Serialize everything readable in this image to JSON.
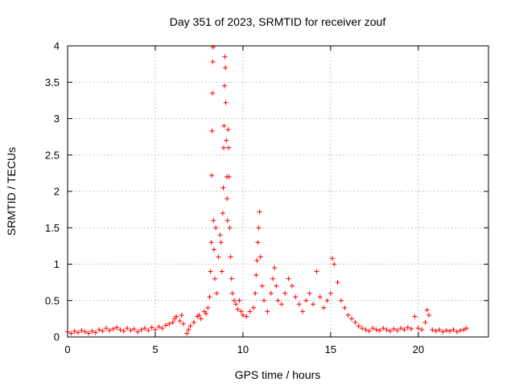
{
  "chart_data": {
    "type": "scatter",
    "title": "Day 351 of 2023, SRMTID for receiver zouf",
    "xlabel": "GPS time / hours",
    "ylabel": "SRMTID / TECUs",
    "xlim": [
      0,
      24
    ],
    "ylim": [
      0,
      4
    ],
    "x_ticks": [
      0,
      5,
      10,
      15,
      20
    ],
    "y_ticks": [
      0,
      0.5,
      1,
      1.5,
      2,
      2.5,
      3,
      3.5,
      4
    ],
    "x_tick_labels": [
      "0",
      "5",
      "10",
      "15",
      "20"
    ],
    "y_tick_labels": [
      "0",
      "0.5",
      "1",
      "1.5",
      "2",
      "2.5",
      "3",
      "3.5",
      "4"
    ],
    "grid": true,
    "marker": "+",
    "color": "#ff0000",
    "series": [
      {
        "name": "SRMTID",
        "points": [
          [
            0.0,
            0.07
          ],
          [
            0.2,
            0.05
          ],
          [
            0.4,
            0.08
          ],
          [
            0.6,
            0.06
          ],
          [
            0.8,
            0.09
          ],
          [
            1.0,
            0.07
          ],
          [
            1.2,
            0.05
          ],
          [
            1.4,
            0.08
          ],
          [
            1.6,
            0.06
          ],
          [
            1.8,
            0.1
          ],
          [
            2.0,
            0.08
          ],
          [
            2.2,
            0.12
          ],
          [
            2.4,
            0.09
          ],
          [
            2.6,
            0.11
          ],
          [
            2.8,
            0.13
          ],
          [
            3.0,
            0.1
          ],
          [
            3.2,
            0.08
          ],
          [
            3.4,
            0.12
          ],
          [
            3.6,
            0.09
          ],
          [
            3.8,
            0.11
          ],
          [
            4.0,
            0.07
          ],
          [
            4.2,
            0.1
          ],
          [
            4.4,
            0.12
          ],
          [
            4.6,
            0.09
          ],
          [
            4.8,
            0.13
          ],
          [
            5.0,
            0.1
          ],
          [
            5.2,
            0.14
          ],
          [
            5.4,
            0.12
          ],
          [
            5.6,
            0.16
          ],
          [
            5.8,
            0.18
          ],
          [
            6.0,
            0.2
          ],
          [
            6.1,
            0.25
          ],
          [
            6.2,
            0.28
          ],
          [
            6.4,
            0.22
          ],
          [
            6.5,
            0.3
          ],
          [
            6.6,
            0.18
          ],
          [
            6.8,
            0.05
          ],
          [
            6.9,
            0.1
          ],
          [
            7.0,
            0.15
          ],
          [
            7.2,
            0.2
          ],
          [
            7.4,
            0.28
          ],
          [
            7.5,
            0.3
          ],
          [
            7.6,
            0.25
          ],
          [
            7.8,
            0.35
          ],
          [
            7.9,
            0.32
          ],
          [
            8.0,
            0.4
          ],
          [
            8.1,
            0.55
          ],
          [
            8.15,
            0.9
          ],
          [
            8.2,
            1.3
          ],
          [
            8.22,
            2.22
          ],
          [
            8.24,
            2.83
          ],
          [
            8.26,
            3.35
          ],
          [
            8.28,
            3.78
          ],
          [
            8.3,
            3.98
          ],
          [
            8.32,
            1.6
          ],
          [
            8.35,
            1.2
          ],
          [
            8.4,
            0.8
          ],
          [
            8.45,
            1.5
          ],
          [
            8.5,
            0.6
          ],
          [
            8.6,
            1.1
          ],
          [
            8.7,
            1.4
          ],
          [
            8.75,
            1.3
          ],
          [
            8.8,
            0.9
          ],
          [
            8.85,
            1.7
          ],
          [
            8.88,
            2.05
          ],
          [
            8.9,
            2.6
          ],
          [
            8.92,
            2.9
          ],
          [
            8.95,
            3.45
          ],
          [
            8.97,
            3.85
          ],
          [
            9.0,
            3.7
          ],
          [
            9.02,
            3.22
          ],
          [
            9.05,
            2.7
          ],
          [
            9.08,
            2.2
          ],
          [
            9.1,
            1.9
          ],
          [
            9.12,
            1.6
          ],
          [
            9.15,
            2.85
          ],
          [
            9.18,
            2.6
          ],
          [
            9.2,
            2.2
          ],
          [
            9.25,
            1.5
          ],
          [
            9.3,
            1.1
          ],
          [
            9.35,
            0.8
          ],
          [
            9.4,
            0.6
          ],
          [
            9.5,
            0.5
          ],
          [
            9.6,
            0.45
          ],
          [
            9.7,
            0.38
          ],
          [
            9.8,
            0.5
          ],
          [
            9.9,
            0.35
          ],
          [
            10.0,
            0.3
          ],
          [
            10.2,
            0.28
          ],
          [
            10.4,
            0.35
          ],
          [
            10.6,
            0.4
          ],
          [
            10.7,
            0.6
          ],
          [
            10.75,
            0.85
          ],
          [
            10.8,
            1.05
          ],
          [
            10.85,
            1.3
          ],
          [
            10.9,
            1.5
          ],
          [
            10.95,
            1.72
          ],
          [
            11.0,
            1.1
          ],
          [
            11.1,
            0.7
          ],
          [
            11.2,
            0.5
          ],
          [
            11.4,
            0.35
          ],
          [
            11.6,
            0.6
          ],
          [
            11.7,
            0.8
          ],
          [
            11.8,
            0.95
          ],
          [
            11.9,
            0.7
          ],
          [
            12.0,
            0.5
          ],
          [
            12.2,
            0.45
          ],
          [
            12.4,
            0.6
          ],
          [
            12.6,
            0.8
          ],
          [
            12.8,
            0.7
          ],
          [
            13.0,
            0.55
          ],
          [
            13.2,
            0.45
          ],
          [
            13.4,
            0.35
          ],
          [
            13.6,
            0.5
          ],
          [
            13.8,
            0.6
          ],
          [
            14.0,
            0.45
          ],
          [
            14.2,
            0.9
          ],
          [
            14.4,
            0.55
          ],
          [
            14.6,
            0.4
          ],
          [
            14.8,
            0.5
          ],
          [
            15.0,
            0.6
          ],
          [
            15.1,
            1.08
          ],
          [
            15.2,
            1.0
          ],
          [
            15.4,
            0.75
          ],
          [
            15.6,
            0.5
          ],
          [
            15.8,
            0.4
          ],
          [
            16.0,
            0.3
          ],
          [
            16.2,
            0.25
          ],
          [
            16.4,
            0.2
          ],
          [
            16.6,
            0.15
          ],
          [
            16.8,
            0.12
          ],
          [
            17.0,
            0.1
          ],
          [
            17.2,
            0.08
          ],
          [
            17.4,
            0.12
          ],
          [
            17.6,
            0.1
          ],
          [
            17.8,
            0.09
          ],
          [
            18.0,
            0.12
          ],
          [
            18.2,
            0.1
          ],
          [
            18.4,
            0.08
          ],
          [
            18.6,
            0.11
          ],
          [
            18.8,
            0.09
          ],
          [
            19.0,
            0.12
          ],
          [
            19.2,
            0.1
          ],
          [
            19.4,
            0.13
          ],
          [
            19.6,
            0.11
          ],
          [
            19.8,
            0.28
          ],
          [
            20.0,
            0.12
          ],
          [
            20.2,
            0.1
          ],
          [
            20.4,
            0.2
          ],
          [
            20.5,
            0.37
          ],
          [
            20.6,
            0.3
          ],
          [
            20.8,
            0.1
          ],
          [
            21.0,
            0.08
          ],
          [
            21.2,
            0.1
          ],
          [
            21.4,
            0.07
          ],
          [
            21.6,
            0.09
          ],
          [
            21.8,
            0.08
          ],
          [
            22.0,
            0.1
          ],
          [
            22.2,
            0.07
          ],
          [
            22.4,
            0.09
          ],
          [
            22.6,
            0.1
          ],
          [
            22.75,
            0.12
          ]
        ]
      }
    ]
  }
}
